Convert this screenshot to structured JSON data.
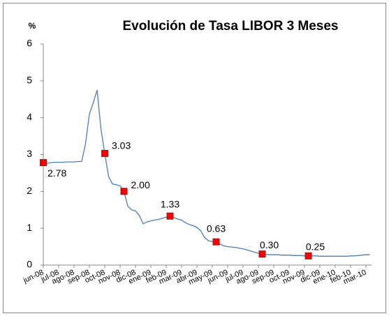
{
  "chart_data": {
    "type": "line",
    "title": "Evolución de Tasa LIBOR 3 Meses",
    "y_label": "%",
    "categories": [
      "jun-08",
      null,
      null,
      null,
      "jul-08",
      null,
      null,
      null,
      "ago-08",
      null,
      null,
      null,
      "sep-08",
      null,
      null,
      null,
      "oct-08",
      null,
      null,
      null,
      "nov-08",
      null,
      null,
      null,
      "dic-08",
      null,
      null,
      null,
      "ene-09",
      null,
      null,
      null,
      "feb-09",
      null,
      null,
      null,
      "mar-09",
      null,
      null,
      null,
      "abr-09",
      null,
      null,
      null,
      "may-09",
      null,
      null,
      null,
      "jun-09",
      null,
      null,
      null,
      "jul-09",
      null,
      null,
      null,
      "ago-09",
      null,
      null,
      null,
      "sep-09",
      null,
      null,
      null,
      "oct-09",
      null,
      null,
      null,
      "nov-09",
      null,
      null,
      null,
      "dic-09",
      null,
      null,
      null,
      "ene-10",
      null,
      null,
      null,
      "feb-10",
      null,
      null,
      null,
      "mar-10",
      null
    ],
    "series": [
      {
        "color": "#4a7ebb",
        "values": [
          2.78,
          2.76,
          2.78,
          2.79,
          2.79,
          2.79,
          2.8,
          2.8,
          2.8,
          2.81,
          2.81,
          3.3,
          4.1,
          4.4,
          4.75,
          3.7,
          3.03,
          2.4,
          2.2,
          2.18,
          2.15,
          2.0,
          1.6,
          1.5,
          1.47,
          1.35,
          1.12,
          1.17,
          1.2,
          1.22,
          1.24,
          1.27,
          1.3,
          1.33,
          1.29,
          1.25,
          1.22,
          1.15,
          1.1,
          1.07,
          1.02,
          0.93,
          0.75,
          0.66,
          0.64,
          0.63,
          0.57,
          0.52,
          0.5,
          0.49,
          0.48,
          0.46,
          0.44,
          0.41,
          0.38,
          0.35,
          0.32,
          0.3,
          0.29,
          0.28,
          0.28,
          0.28,
          0.27,
          0.27,
          0.27,
          0.26,
          0.26,
          0.26,
          0.25,
          0.25,
          0.25,
          0.25,
          0.24,
          0.24,
          0.24,
          0.24,
          0.24,
          0.24,
          0.24,
          0.24,
          0.25,
          0.25,
          0.26,
          0.27,
          0.28,
          0.28
        ]
      },
      {
        "color": "#ff0000",
        "values": [
          2.78,
          null,
          null,
          null,
          null,
          null,
          null,
          null,
          null,
          null,
          null,
          null,
          null,
          null,
          null,
          null,
          3.03,
          null,
          null,
          null,
          null,
          2.0,
          null,
          null,
          null,
          null,
          null,
          null,
          null,
          null,
          null,
          null,
          null,
          1.33,
          null,
          null,
          null,
          null,
          null,
          null,
          null,
          null,
          null,
          null,
          null,
          0.63,
          null,
          null,
          null,
          null,
          null,
          null,
          null,
          null,
          null,
          null,
          null,
          0.3,
          null,
          null,
          null,
          null,
          null,
          null,
          null,
          null,
          null,
          null,
          null,
          0.25,
          null,
          null,
          null,
          null,
          null,
          null,
          null,
          null,
          null,
          null,
          null,
          null,
          null,
          null,
          null,
          null
        ],
        "value_labels": [
          "2.78",
          null,
          null,
          null,
          null,
          null,
          null,
          null,
          null,
          null,
          null,
          null,
          null,
          null,
          null,
          null,
          "3.03",
          null,
          null,
          null,
          null,
          "2.00",
          null,
          null,
          null,
          null,
          null,
          null,
          null,
          null,
          null,
          null,
          null,
          "1.33",
          null,
          null,
          null,
          null,
          null,
          null,
          null,
          null,
          null,
          null,
          null,
          "0.63",
          null,
          null,
          null,
          null,
          null,
          null,
          null,
          null,
          null,
          null,
          null,
          "0.30",
          null,
          null,
          null,
          null,
          null,
          null,
          null,
          null,
          null,
          null,
          null,
          "0.25",
          null,
          null,
          null,
          null,
          null,
          null,
          null,
          null,
          null,
          null,
          null,
          null,
          null,
          null,
          null,
          null
        ]
      }
    ],
    "ylim": [
      0,
      6
    ],
    "yticks": [
      0,
      1,
      2,
      3,
      4,
      5,
      6
    ],
    "grid": false
  }
}
